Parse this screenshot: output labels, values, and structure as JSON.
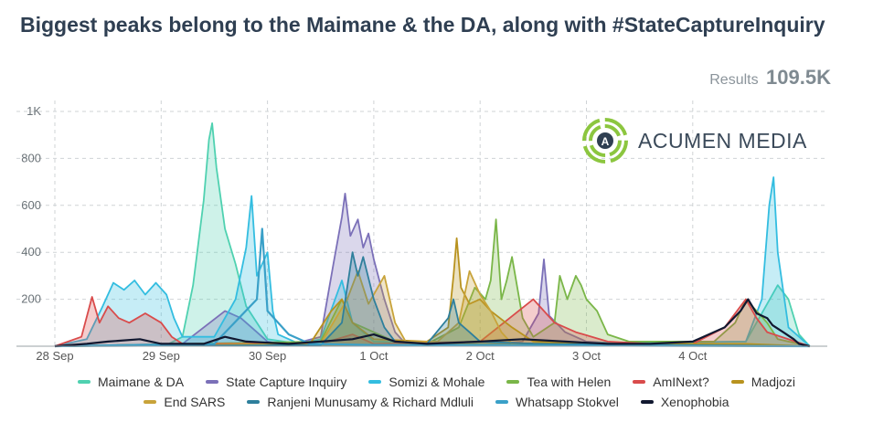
{
  "header": {
    "title": "Biggest peaks belong to the Maimane & the DA, along with #StateCaptureInquiry",
    "results_label": "Results",
    "results_value": "109.5K"
  },
  "brand": {
    "name": "ACUMEN MEDIA",
    "color": "#8cc63f"
  },
  "chart_data": {
    "type": "area",
    "title": "Biggest peaks belong to the Maimane & the DA, along with #StateCaptureInquiry",
    "xlabel": "",
    "ylabel": "",
    "x_ticks": [
      "28 Sep",
      "29 Sep",
      "30 Sep",
      "1 Oct",
      "2 Oct",
      "3 Oct",
      "4 Oct"
    ],
    "x_range": [
      0,
      7.1
    ],
    "y_ticks": [
      200,
      400,
      600,
      800,
      1000
    ],
    "y_tick_labels": [
      "200",
      "400",
      "600",
      "800",
      "1K"
    ],
    "ylim": [
      0,
      1000
    ],
    "grid": true,
    "legend_position": "bottom",
    "series": [
      {
        "name": "Maimane & DA",
        "color": "#4fd1b0",
        "fill": true,
        "points": [
          [
            0,
            0
          ],
          [
            1.05,
            5
          ],
          [
            1.2,
            40
          ],
          [
            1.3,
            260
          ],
          [
            1.4,
            620
          ],
          [
            1.45,
            880
          ],
          [
            1.48,
            950
          ],
          [
            1.52,
            760
          ],
          [
            1.6,
            500
          ],
          [
            1.7,
            350
          ],
          [
            1.8,
            170
          ],
          [
            1.9,
            100
          ],
          [
            2.0,
            30
          ],
          [
            2.3,
            10
          ],
          [
            3.0,
            5
          ],
          [
            4.0,
            5
          ],
          [
            6.5,
            20
          ],
          [
            6.8,
            260
          ],
          [
            6.9,
            200
          ],
          [
            7.0,
            50
          ],
          [
            7.1,
            0
          ]
        ]
      },
      {
        "name": "State Capture Inquiry",
        "color": "#7b70b8",
        "fill": true,
        "points": [
          [
            0,
            0
          ],
          [
            1.2,
            10
          ],
          [
            1.6,
            150
          ],
          [
            1.75,
            120
          ],
          [
            1.9,
            60
          ],
          [
            2.0,
            20
          ],
          [
            2.2,
            5
          ],
          [
            2.5,
            40
          ],
          [
            2.62,
            350
          ],
          [
            2.7,
            550
          ],
          [
            2.73,
            650
          ],
          [
            2.78,
            470
          ],
          [
            2.85,
            540
          ],
          [
            2.9,
            420
          ],
          [
            2.95,
            480
          ],
          [
            3.0,
            370
          ],
          [
            3.1,
            200
          ],
          [
            3.2,
            60
          ],
          [
            3.3,
            10
          ],
          [
            4.0,
            5
          ],
          [
            4.4,
            20
          ],
          [
            4.55,
            140
          ],
          [
            4.6,
            370
          ],
          [
            4.65,
            130
          ],
          [
            4.8,
            60
          ],
          [
            5.0,
            20
          ],
          [
            5.4,
            10
          ],
          [
            6.0,
            5
          ],
          [
            6.5,
            5
          ],
          [
            7.1,
            0
          ]
        ]
      },
      {
        "name": "Somizi & Mohale",
        "color": "#33bde0",
        "fill": true,
        "points": [
          [
            0,
            0
          ],
          [
            0.3,
            30
          ],
          [
            0.45,
            170
          ],
          [
            0.55,
            270
          ],
          [
            0.65,
            240
          ],
          [
            0.75,
            280
          ],
          [
            0.85,
            220
          ],
          [
            0.95,
            270
          ],
          [
            1.05,
            220
          ],
          [
            1.12,
            120
          ],
          [
            1.2,
            40
          ],
          [
            1.5,
            40
          ],
          [
            1.7,
            200
          ],
          [
            1.8,
            420
          ],
          [
            1.85,
            640
          ],
          [
            1.9,
            300
          ],
          [
            2.0,
            400
          ],
          [
            2.05,
            150
          ],
          [
            2.1,
            50
          ],
          [
            2.3,
            10
          ],
          [
            2.5,
            30
          ],
          [
            2.7,
            280
          ],
          [
            2.8,
            100
          ],
          [
            3.0,
            20
          ],
          [
            4.0,
            10
          ],
          [
            6.5,
            20
          ],
          [
            6.65,
            200
          ],
          [
            6.72,
            600
          ],
          [
            6.76,
            720
          ],
          [
            6.8,
            400
          ],
          [
            6.9,
            80
          ],
          [
            7.1,
            0
          ]
        ]
      },
      {
        "name": "Tea with Helen",
        "color": "#7ab648",
        "fill": true,
        "points": [
          [
            0,
            0
          ],
          [
            2.5,
            20
          ],
          [
            2.7,
            200
          ],
          [
            2.8,
            100
          ],
          [
            2.9,
            80
          ],
          [
            3.2,
            20
          ],
          [
            3.5,
            10
          ],
          [
            3.8,
            80
          ],
          [
            3.95,
            250
          ],
          [
            4.05,
            200
          ],
          [
            4.1,
            280
          ],
          [
            4.15,
            540
          ],
          [
            4.2,
            200
          ],
          [
            4.25,
            280
          ],
          [
            4.3,
            380
          ],
          [
            4.4,
            120
          ],
          [
            4.5,
            40
          ],
          [
            4.7,
            100
          ],
          [
            4.75,
            300
          ],
          [
            4.82,
            200
          ],
          [
            4.9,
            300
          ],
          [
            4.95,
            260
          ],
          [
            5.0,
            200
          ],
          [
            5.1,
            150
          ],
          [
            5.2,
            50
          ],
          [
            5.4,
            20
          ],
          [
            6.2,
            20
          ],
          [
            6.4,
            100
          ],
          [
            6.5,
            200
          ],
          [
            6.6,
            150
          ],
          [
            6.7,
            100
          ],
          [
            6.8,
            30
          ],
          [
            7.1,
            0
          ]
        ]
      },
      {
        "name": "AmINext?",
        "color": "#d94b4b",
        "fill": true,
        "points": [
          [
            0,
            0
          ],
          [
            0.25,
            40
          ],
          [
            0.35,
            210
          ],
          [
            0.42,
            100
          ],
          [
            0.5,
            170
          ],
          [
            0.6,
            120
          ],
          [
            0.7,
            100
          ],
          [
            0.85,
            140
          ],
          [
            1.0,
            100
          ],
          [
            1.1,
            40
          ],
          [
            1.2,
            10
          ],
          [
            1.5,
            10
          ],
          [
            2.5,
            10
          ],
          [
            2.8,
            50
          ],
          [
            3.0,
            10
          ],
          [
            4.0,
            20
          ],
          [
            4.5,
            200
          ],
          [
            4.6,
            150
          ],
          [
            4.7,
            100
          ],
          [
            4.9,
            60
          ],
          [
            5.2,
            20
          ],
          [
            5.6,
            10
          ],
          [
            6.0,
            10
          ],
          [
            6.3,
            80
          ],
          [
            6.5,
            200
          ],
          [
            6.6,
            120
          ],
          [
            6.7,
            60
          ],
          [
            7.1,
            0
          ]
        ]
      },
      {
        "name": "Madjozi",
        "color": "#b8921e",
        "fill": true,
        "points": [
          [
            0,
            0
          ],
          [
            2.4,
            10
          ],
          [
            2.6,
            150
          ],
          [
            2.7,
            200
          ],
          [
            2.8,
            100
          ],
          [
            3.0,
            30
          ],
          [
            3.5,
            20
          ],
          [
            3.7,
            80
          ],
          [
            3.75,
            300
          ],
          [
            3.78,
            460
          ],
          [
            3.82,
            250
          ],
          [
            3.9,
            180
          ],
          [
            4.0,
            200
          ],
          [
            4.1,
            150
          ],
          [
            4.3,
            80
          ],
          [
            4.5,
            20
          ],
          [
            5.0,
            10
          ],
          [
            6.5,
            10
          ],
          [
            7.1,
            0
          ]
        ]
      },
      {
        "name": "End SARS",
        "color": "#c8a33a",
        "fill": true,
        "points": [
          [
            0,
            0
          ],
          [
            2.5,
            10
          ],
          [
            2.75,
            200
          ],
          [
            2.85,
            320
          ],
          [
            2.95,
            180
          ],
          [
            3.05,
            260
          ],
          [
            3.1,
            300
          ],
          [
            3.2,
            100
          ],
          [
            3.3,
            20
          ],
          [
            3.6,
            20
          ],
          [
            3.8,
            100
          ],
          [
            3.9,
            320
          ],
          [
            4.0,
            220
          ],
          [
            4.1,
            150
          ],
          [
            4.2,
            60
          ],
          [
            4.3,
            10
          ],
          [
            7.1,
            0
          ]
        ]
      },
      {
        "name": "Ranjeni Munusamy & Richard Mdluli",
        "color": "#2e7f9c",
        "fill": true,
        "points": [
          [
            0,
            0
          ],
          [
            2.5,
            5
          ],
          [
            2.7,
            100
          ],
          [
            2.8,
            400
          ],
          [
            2.85,
            300
          ],
          [
            2.9,
            380
          ],
          [
            3.0,
            200
          ],
          [
            3.1,
            80
          ],
          [
            3.2,
            20
          ],
          [
            3.5,
            10
          ],
          [
            3.7,
            120
          ],
          [
            3.75,
            200
          ],
          [
            3.8,
            100
          ],
          [
            3.9,
            60
          ],
          [
            4.0,
            20
          ],
          [
            4.5,
            10
          ],
          [
            7.1,
            0
          ]
        ]
      },
      {
        "name": "Whatsapp Stokvel",
        "color": "#3aa0c8",
        "fill": false,
        "points": [
          [
            0,
            0
          ],
          [
            1.5,
            10
          ],
          [
            1.9,
            200
          ],
          [
            1.95,
            500
          ],
          [
            2.0,
            150
          ],
          [
            2.2,
            50
          ],
          [
            2.4,
            10
          ],
          [
            3.0,
            5
          ],
          [
            7.1,
            0
          ]
        ]
      },
      {
        "name": "Xenophobia",
        "color": "#111830",
        "fill": false,
        "points": [
          [
            0,
            0
          ],
          [
            0.3,
            10
          ],
          [
            0.5,
            20
          ],
          [
            0.8,
            30
          ],
          [
            1.0,
            10
          ],
          [
            1.4,
            10
          ],
          [
            1.6,
            40
          ],
          [
            1.8,
            20
          ],
          [
            2.2,
            10
          ],
          [
            2.5,
            20
          ],
          [
            2.8,
            30
          ],
          [
            3.0,
            50
          ],
          [
            3.2,
            20
          ],
          [
            3.5,
            10
          ],
          [
            4.0,
            20
          ],
          [
            4.4,
            30
          ],
          [
            4.8,
            20
          ],
          [
            5.2,
            10
          ],
          [
            5.6,
            10
          ],
          [
            6.0,
            20
          ],
          [
            6.3,
            80
          ],
          [
            6.45,
            150
          ],
          [
            6.52,
            200
          ],
          [
            6.6,
            140
          ],
          [
            6.7,
            120
          ],
          [
            6.75,
            90
          ],
          [
            6.85,
            60
          ],
          [
            6.95,
            30
          ],
          [
            7.0,
            10
          ],
          [
            7.1,
            0
          ]
        ]
      }
    ]
  }
}
